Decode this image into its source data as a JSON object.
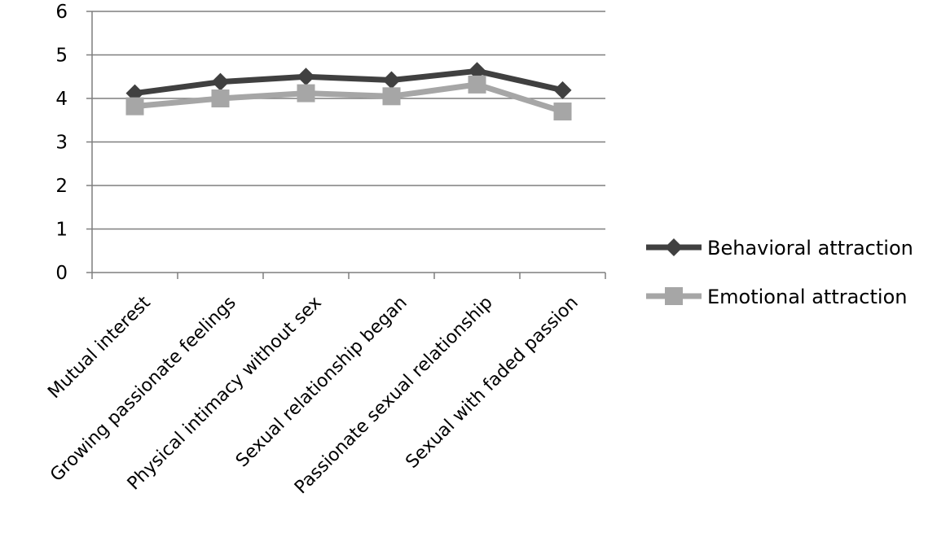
{
  "chart_data": {
    "type": "line",
    "categories": [
      "Mutual interest",
      "Growing passionate feelings",
      "Physical intimacy without sex",
      "Sexual relationship began",
      "Passionate sexual relationship",
      "Sexual with faded passion"
    ],
    "series": [
      {
        "name": "Behavioral attraction",
        "values": [
          4.12,
          4.38,
          4.5,
          4.42,
          4.63,
          4.19
        ],
        "color": "#404040",
        "marker": "diamond"
      },
      {
        "name": "Emotional attraction",
        "values": [
          3.82,
          4.0,
          4.12,
          4.05,
          4.32,
          3.7
        ],
        "color": "#a6a6a6",
        "marker": "square"
      }
    ],
    "yticks": [
      "0",
      "1",
      "2",
      "3",
      "4",
      "5",
      "6"
    ],
    "ylim": [
      0,
      6
    ],
    "grid": true,
    "legend": "right"
  }
}
